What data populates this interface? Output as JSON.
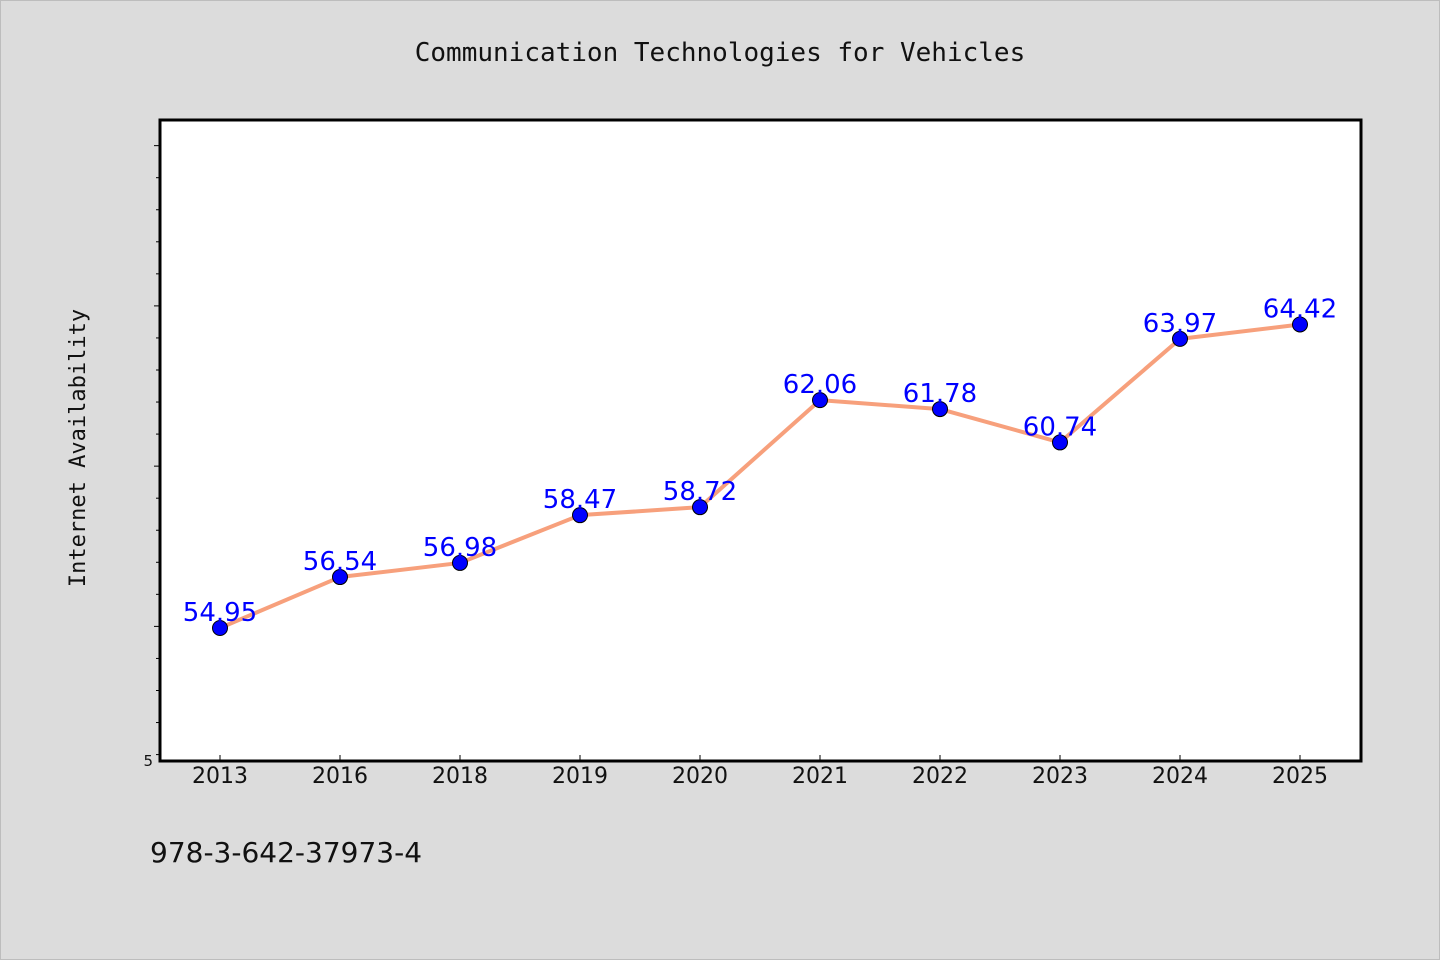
{
  "note": "978-3-642-37973-4",
  "colors": {
    "background": "#dcdcdc",
    "plot_background": "#ffffff",
    "line": "#f7a07c",
    "marker": "#0000ff",
    "data_label": "#0000ff"
  },
  "chart_data": {
    "type": "line",
    "title": "Communication Technologies for Vehicles",
    "xlabel": "",
    "ylabel": "Internet Availability",
    "categories": [
      "2013",
      "2016",
      "2018",
      "2019",
      "2020",
      "2021",
      "2022",
      "2023",
      "2024",
      "2025"
    ],
    "series": [
      {
        "values": [
          54.95,
          56.54,
          56.98,
          58.47,
          58.72,
          62.06,
          61.78,
          60.74,
          63.97,
          64.42
        ]
      }
    ],
    "data_labels": [
      "54.95",
      "56.54",
      "56.98",
      "58.47",
      "58.72",
      "62.06",
      "61.78",
      "60.74",
      "63.97",
      "64.42"
    ],
    "y_tick_labels": [
      "5"
    ],
    "ylim": [
      50.8,
      70.8
    ],
    "y_minor_step": 1,
    "y_major_step": 5,
    "grid": false,
    "legend": "none"
  }
}
